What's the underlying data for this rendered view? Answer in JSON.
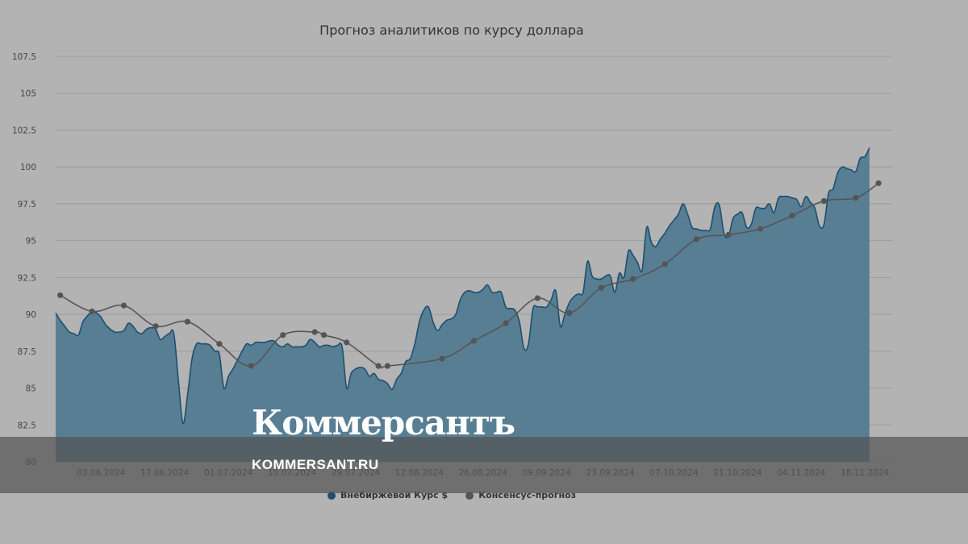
{
  "colors": {
    "background": "#b3b3b3",
    "area_fill": "#587e93",
    "area_line": "#1c4f70",
    "consensus": "#555555",
    "grid": "#9c9c9c"
  },
  "watermark": {
    "logo": "Коммерсантъ",
    "url": "KOMMERSANT.RU"
  },
  "chart_data": {
    "type": "area",
    "title": "Прогноз аналитиков по курсу доллара",
    "ylim": [
      80,
      107.5
    ],
    "y_ticks": [
      80,
      82.5,
      85,
      87.5,
      90,
      92.5,
      95,
      97.5,
      100,
      102.5,
      105,
      107.5
    ],
    "y_tick_labels": [
      "80",
      "82.5",
      "85",
      "87.5",
      "90",
      "92.5",
      "95",
      "97.5",
      "100",
      "102.5",
      "105",
      "107.5"
    ],
    "x_range": [
      "2024-05-24",
      "2024-11-24"
    ],
    "x_ticks": [
      "2024-06-03",
      "2024-06-17",
      "2024-07-01",
      "2024-07-15",
      "2024-07-29",
      "2024-08-12",
      "2024-08-26",
      "2024-09-09",
      "2024-09-23",
      "2024-10-07",
      "2024-10-21",
      "2024-11-04",
      "2024-11-18"
    ],
    "x_tick_labels": [
      "03.06.2024",
      "17.06.2024",
      "01.07.2024",
      "15.07.2024",
      "29.07.2024",
      "12.08.2024",
      "26.08.2024",
      "09.09.2024",
      "23.09.2024",
      "07.10.2024",
      "21.10.2024",
      "04.11.2024",
      "18.11.2024"
    ],
    "grid": true,
    "legend_position": "bottom",
    "series": [
      {
        "name": "Внебиржевой Курс $",
        "kind": "area",
        "points": [
          [
            "2024-05-24",
            90.1
          ],
          [
            "2024-05-25",
            89.6
          ],
          [
            "2024-05-26",
            89.2
          ],
          [
            "2024-05-27",
            88.8
          ],
          [
            "2024-05-28",
            88.7
          ],
          [
            "2024-05-29",
            88.6
          ],
          [
            "2024-05-30",
            89.5
          ],
          [
            "2024-05-31",
            89.9
          ],
          [
            "2024-06-01",
            90.2
          ],
          [
            "2024-06-02",
            90.1
          ],
          [
            "2024-06-03",
            89.8
          ],
          [
            "2024-06-04",
            89.3
          ],
          [
            "2024-06-05",
            89.0
          ],
          [
            "2024-06-06",
            88.8
          ],
          [
            "2024-06-07",
            88.8
          ],
          [
            "2024-06-08",
            88.9
          ],
          [
            "2024-06-09",
            89.4
          ],
          [
            "2024-06-10",
            89.2
          ],
          [
            "2024-06-11",
            88.8
          ],
          [
            "2024-06-12",
            88.7
          ],
          [
            "2024-06-13",
            89.0
          ],
          [
            "2024-06-14",
            89.1
          ],
          [
            "2024-06-15",
            89.0
          ],
          [
            "2024-06-16",
            88.3
          ],
          [
            "2024-06-17",
            88.5
          ],
          [
            "2024-06-18",
            88.7
          ],
          [
            "2024-06-19",
            88.7
          ],
          [
            "2024-06-20",
            85.5
          ],
          [
            "2024-06-21",
            82.6
          ],
          [
            "2024-06-22",
            84.5
          ],
          [
            "2024-06-23",
            87.0
          ],
          [
            "2024-06-24",
            88.0
          ],
          [
            "2024-06-25",
            88.0
          ],
          [
            "2024-06-26",
            88.0
          ],
          [
            "2024-06-27",
            87.9
          ],
          [
            "2024-06-28",
            87.5
          ],
          [
            "2024-06-29",
            87.3
          ],
          [
            "2024-06-30",
            85.0
          ],
          [
            "2024-07-01",
            85.8
          ],
          [
            "2024-07-02",
            86.3
          ],
          [
            "2024-07-03",
            86.9
          ],
          [
            "2024-07-04",
            87.5
          ],
          [
            "2024-07-05",
            88.0
          ],
          [
            "2024-07-06",
            87.9
          ],
          [
            "2024-07-07",
            88.1
          ],
          [
            "2024-07-08",
            88.1
          ],
          [
            "2024-07-09",
            88.1
          ],
          [
            "2024-07-10",
            88.2
          ],
          [
            "2024-07-11",
            88.2
          ],
          [
            "2024-07-12",
            87.9
          ],
          [
            "2024-07-13",
            87.8
          ],
          [
            "2024-07-14",
            88.0
          ],
          [
            "2024-07-15",
            87.8
          ],
          [
            "2024-07-16",
            87.8
          ],
          [
            "2024-07-17",
            87.8
          ],
          [
            "2024-07-18",
            87.9
          ],
          [
            "2024-07-19",
            88.3
          ],
          [
            "2024-07-20",
            88.1
          ],
          [
            "2024-07-21",
            87.8
          ],
          [
            "2024-07-22",
            87.9
          ],
          [
            "2024-07-23",
            87.9
          ],
          [
            "2024-07-24",
            87.8
          ],
          [
            "2024-07-25",
            87.9
          ],
          [
            "2024-07-26",
            87.8
          ],
          [
            "2024-07-27",
            85.0
          ],
          [
            "2024-07-28",
            86.0
          ],
          [
            "2024-07-29",
            86.3
          ],
          [
            "2024-07-30",
            86.4
          ],
          [
            "2024-07-31",
            86.3
          ],
          [
            "2024-08-01",
            85.8
          ],
          [
            "2024-08-02",
            86.0
          ],
          [
            "2024-08-03",
            85.6
          ],
          [
            "2024-08-04",
            85.5
          ],
          [
            "2024-08-05",
            85.3
          ],
          [
            "2024-08-06",
            84.9
          ],
          [
            "2024-08-07",
            85.6
          ],
          [
            "2024-08-08",
            86.0
          ],
          [
            "2024-08-09",
            86.8
          ],
          [
            "2024-08-10",
            87.0
          ],
          [
            "2024-08-11",
            88.0
          ],
          [
            "2024-08-12",
            89.5
          ],
          [
            "2024-08-13",
            90.3
          ],
          [
            "2024-08-14",
            90.5
          ],
          [
            "2024-08-15",
            89.5
          ],
          [
            "2024-08-16",
            88.9
          ],
          [
            "2024-08-17",
            89.3
          ],
          [
            "2024-08-18",
            89.6
          ],
          [
            "2024-08-19",
            89.7
          ],
          [
            "2024-08-20",
            90.0
          ],
          [
            "2024-08-21",
            91.0
          ],
          [
            "2024-08-22",
            91.5
          ],
          [
            "2024-08-23",
            91.6
          ],
          [
            "2024-08-24",
            91.5
          ],
          [
            "2024-08-25",
            91.5
          ],
          [
            "2024-08-26",
            91.7
          ],
          [
            "2024-08-27",
            92.0
          ],
          [
            "2024-08-28",
            91.5
          ],
          [
            "2024-08-29",
            91.5
          ],
          [
            "2024-08-30",
            91.5
          ],
          [
            "2024-08-31",
            90.5
          ],
          [
            "2024-09-01",
            90.4
          ],
          [
            "2024-09-02",
            90.3
          ],
          [
            "2024-09-03",
            89.5
          ],
          [
            "2024-09-04",
            87.7
          ],
          [
            "2024-09-05",
            88.0
          ],
          [
            "2024-09-06",
            90.4
          ],
          [
            "2024-09-07",
            90.5
          ],
          [
            "2024-09-08",
            90.5
          ],
          [
            "2024-09-09",
            90.5
          ],
          [
            "2024-09-10",
            91.0
          ],
          [
            "2024-09-11",
            91.6
          ],
          [
            "2024-09-12",
            89.2
          ],
          [
            "2024-09-13",
            90.0
          ],
          [
            "2024-09-14",
            90.8
          ],
          [
            "2024-09-15",
            91.2
          ],
          [
            "2024-09-16",
            91.4
          ],
          [
            "2024-09-17",
            91.5
          ],
          [
            "2024-09-18",
            93.6
          ],
          [
            "2024-09-19",
            92.6
          ],
          [
            "2024-09-20",
            92.4
          ],
          [
            "2024-09-21",
            92.4
          ],
          [
            "2024-09-22",
            92.6
          ],
          [
            "2024-09-23",
            92.6
          ],
          [
            "2024-09-24",
            91.5
          ],
          [
            "2024-09-25",
            92.8
          ],
          [
            "2024-09-26",
            92.5
          ],
          [
            "2024-09-27",
            94.3
          ],
          [
            "2024-09-28",
            94.0
          ],
          [
            "2024-09-29",
            93.5
          ],
          [
            "2024-09-30",
            93.0
          ],
          [
            "2024-10-01",
            95.9
          ],
          [
            "2024-10-02",
            94.9
          ],
          [
            "2024-10-03",
            94.6
          ],
          [
            "2024-10-04",
            95.1
          ],
          [
            "2024-10-05",
            95.5
          ],
          [
            "2024-10-06",
            96.0
          ],
          [
            "2024-10-07",
            96.4
          ],
          [
            "2024-10-08",
            96.8
          ],
          [
            "2024-10-09",
            97.5
          ],
          [
            "2024-10-10",
            96.8
          ],
          [
            "2024-10-11",
            95.9
          ],
          [
            "2024-10-12",
            95.8
          ],
          [
            "2024-10-13",
            95.7
          ],
          [
            "2024-10-14",
            95.7
          ],
          [
            "2024-10-15",
            95.8
          ],
          [
            "2024-10-16",
            97.3
          ],
          [
            "2024-10-17",
            97.4
          ],
          [
            "2024-10-18",
            95.5
          ],
          [
            "2024-10-19",
            95.3
          ],
          [
            "2024-10-20",
            96.5
          ],
          [
            "2024-10-21",
            96.8
          ],
          [
            "2024-10-22",
            96.9
          ],
          [
            "2024-10-23",
            95.9
          ],
          [
            "2024-10-24",
            96.1
          ],
          [
            "2024-10-25",
            97.2
          ],
          [
            "2024-10-26",
            97.2
          ],
          [
            "2024-10-27",
            97.2
          ],
          [
            "2024-10-28",
            97.5
          ],
          [
            "2024-10-29",
            96.9
          ],
          [
            "2024-10-30",
            97.9
          ],
          [
            "2024-10-31",
            98.0
          ],
          [
            "2024-11-01",
            98.0
          ],
          [
            "2024-11-02",
            97.9
          ],
          [
            "2024-11-03",
            97.8
          ],
          [
            "2024-11-04",
            97.3
          ],
          [
            "2024-11-05",
            98.0
          ],
          [
            "2024-11-06",
            97.6
          ],
          [
            "2024-11-07",
            97.2
          ],
          [
            "2024-11-08",
            96.0
          ],
          [
            "2024-11-09",
            96.1
          ],
          [
            "2024-11-10",
            98.2
          ],
          [
            "2024-11-11",
            98.5
          ],
          [
            "2024-11-12",
            99.6
          ],
          [
            "2024-11-13",
            100.0
          ],
          [
            "2024-11-14",
            99.9
          ],
          [
            "2024-11-15",
            99.8
          ],
          [
            "2024-11-16",
            99.7
          ],
          [
            "2024-11-17",
            100.6
          ],
          [
            "2024-11-18",
            100.7
          ],
          [
            "2024-11-19",
            101.3
          ]
        ]
      },
      {
        "name": "Консенсус-прогноз",
        "kind": "line",
        "points": [
          [
            "2024-05-25",
            91.3
          ],
          [
            "2024-06-01",
            90.2
          ],
          [
            "2024-06-08",
            90.6
          ],
          [
            "2024-06-15",
            89.2
          ],
          [
            "2024-06-22",
            89.5
          ],
          [
            "2024-06-29",
            88.0
          ],
          [
            "2024-07-06",
            86.5
          ],
          [
            "2024-07-13",
            88.6
          ],
          [
            "2024-07-20",
            88.8
          ],
          [
            "2024-07-22",
            88.6
          ],
          [
            "2024-07-27",
            88.1
          ],
          [
            "2024-08-03",
            86.5
          ],
          [
            "2024-08-05",
            86.5
          ],
          [
            "2024-08-17",
            87.0
          ],
          [
            "2024-08-24",
            88.2
          ],
          [
            "2024-08-31",
            89.4
          ],
          [
            "2024-09-07",
            91.1
          ],
          [
            "2024-09-14",
            90.1
          ],
          [
            "2024-09-21",
            91.8
          ],
          [
            "2024-09-28",
            92.4
          ],
          [
            "2024-10-05",
            93.4
          ],
          [
            "2024-10-12",
            95.1
          ],
          [
            "2024-10-19",
            95.4
          ],
          [
            "2024-10-26",
            95.8
          ],
          [
            "2024-11-02",
            96.7
          ],
          [
            "2024-11-09",
            97.7
          ],
          [
            "2024-11-16",
            97.9
          ],
          [
            "2024-11-21",
            98.9
          ]
        ]
      }
    ]
  }
}
